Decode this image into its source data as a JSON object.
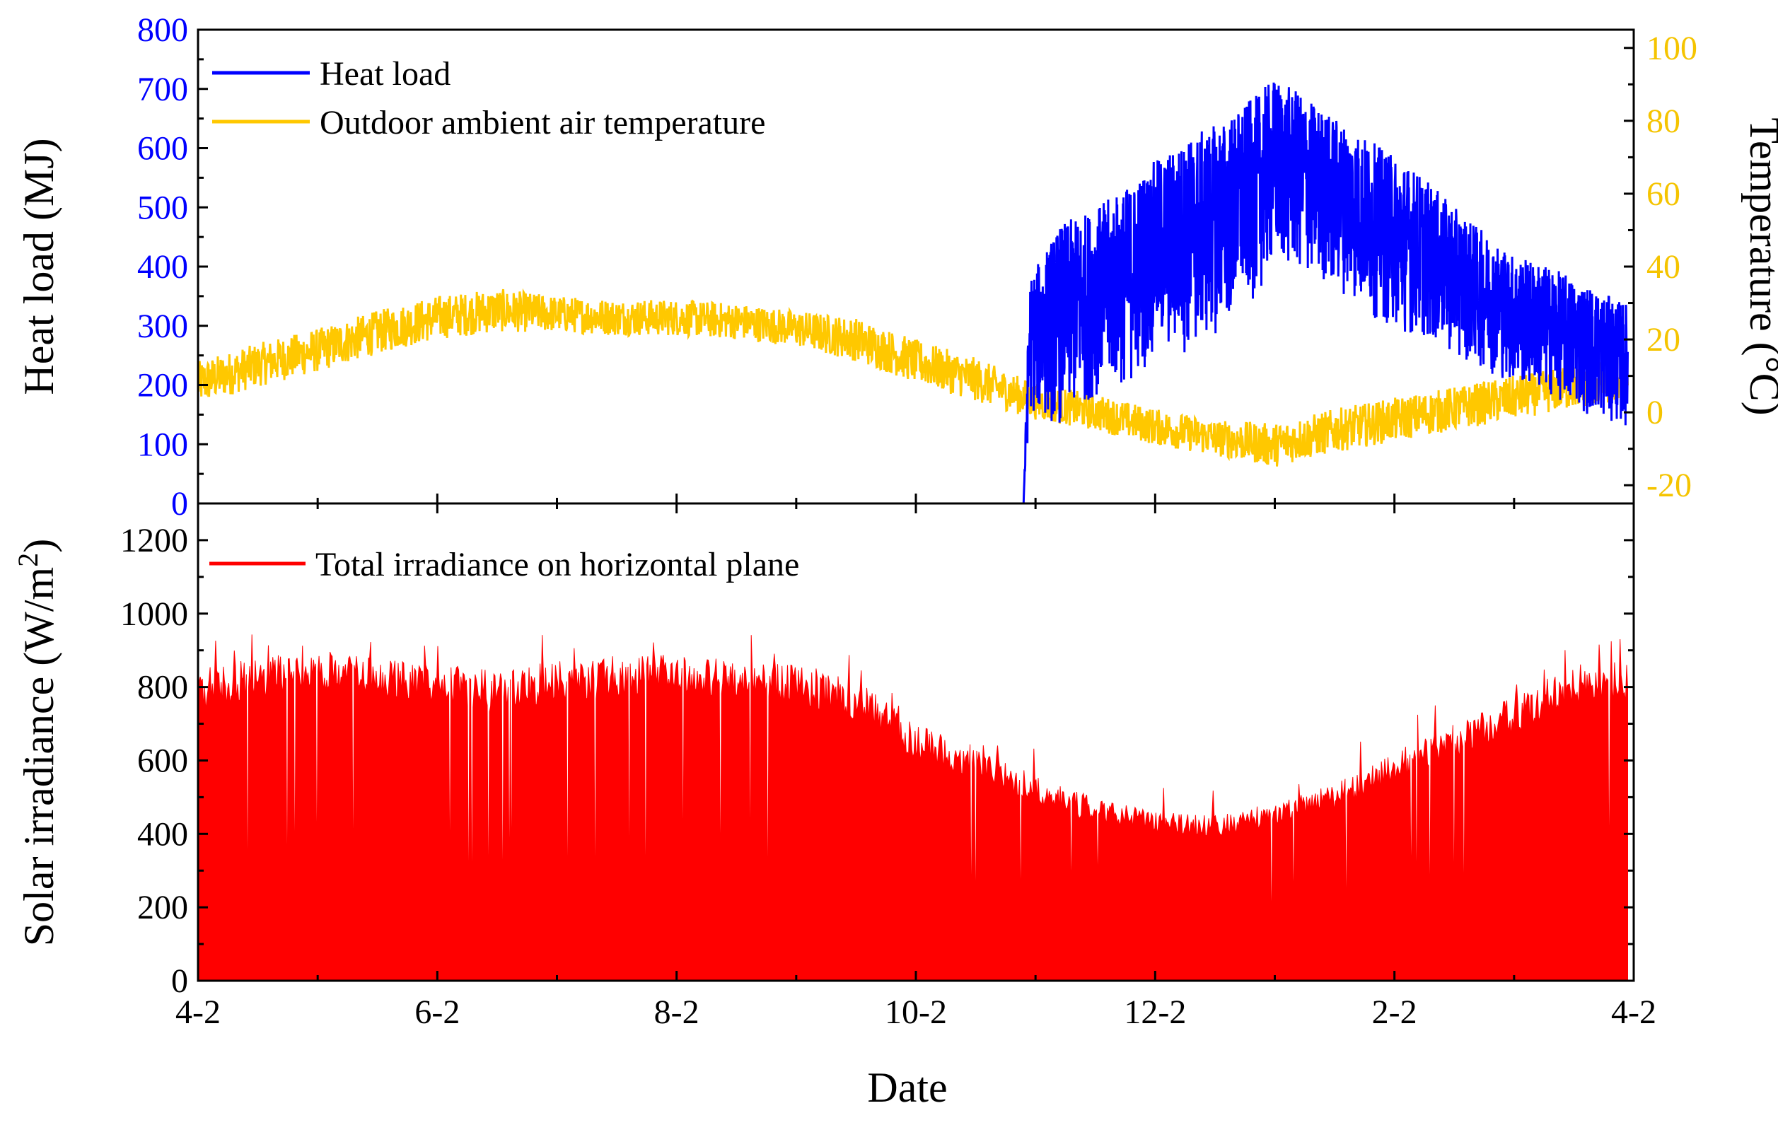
{
  "colors": {
    "heat_load": "#0000ff",
    "temperature": "#ffc800",
    "temperature_ticks": "#f5c400",
    "irradiance": "#ff0000",
    "frame": "#000000"
  },
  "chart_data": [
    {
      "type": "line",
      "panel": "top",
      "title": "",
      "xlabel": "",
      "ylabel_left": "Heat load (MJ)",
      "ylabel_right": "Temperature (°C)",
      "y_left_range": [
        0,
        800
      ],
      "y_left_ticks": [
        "0",
        "100",
        "200",
        "300",
        "400",
        "500",
        "600",
        "700",
        "800"
      ],
      "y_right_range": [
        -25,
        105
      ],
      "y_right_ticks": [
        "-20",
        "0",
        "20",
        "40",
        "60",
        "80",
        "100"
      ],
      "legend": [
        "Heat load",
        "Outdoor ambient air temperature"
      ],
      "legend_position": "top-left",
      "series": [
        {
          "name": "Heat load",
          "axis": "left",
          "note": "daily envelope: zero until about Nov 1, then fluctuating (approximate)",
          "x_month_index": [
            0,
            6.9,
            6.95,
            7.2,
            7.5,
            7.8,
            8.0,
            8.3,
            8.6,
            8.85,
            9.0,
            9.3,
            9.6,
            9.9,
            10.2,
            10.5,
            10.8,
            11.0,
            11.3,
            11.6,
            11.9
          ],
          "low": [
            0,
            0,
            150,
            130,
            180,
            200,
            250,
            250,
            300,
            350,
            400,
            380,
            350,
            300,
            280,
            250,
            220,
            200,
            180,
            150,
            130
          ],
          "high": [
            0,
            0,
            380,
            470,
            500,
            540,
            580,
            620,
            650,
            690,
            720,
            680,
            640,
            600,
            560,
            500,
            450,
            420,
            400,
            370,
            340
          ]
        },
        {
          "name": "Outdoor ambient air temperature",
          "axis": "right",
          "note": "daily mean with fluctuation band (approximate)",
          "x_month_index": [
            0,
            0.5,
            1.0,
            1.5,
            2.0,
            2.5,
            3.0,
            3.5,
            4.0,
            4.5,
            5.0,
            5.5,
            6.0,
            6.5,
            7.0,
            7.5,
            8.0,
            8.5,
            9.0,
            9.5,
            10.0,
            10.5,
            11.0,
            11.5,
            11.95
          ],
          "mean": [
            8,
            13,
            17,
            22,
            26,
            28,
            27,
            26,
            26,
            25,
            23,
            20,
            14,
            9,
            3,
            0,
            -4,
            -7,
            -9,
            -5,
            -2,
            1,
            4,
            7,
            9
          ],
          "amplitude": [
            6,
            6,
            6,
            6,
            6,
            6,
            5,
            5,
            5,
            5,
            5,
            6,
            6,
            6,
            5,
            5,
            5,
            5,
            6,
            6,
            6,
            6,
            6,
            6,
            6
          ]
        }
      ]
    },
    {
      "type": "area",
      "panel": "bottom",
      "title": "",
      "xlabel": "Date",
      "ylabel": "Solar irradiance (W/m",
      "ylabel_sup": "2",
      "ylabel_end": ")",
      "x_ticks": [
        "4-2",
        "6-2",
        "8-2",
        "10-2",
        "12-2",
        "2-2",
        "4-2"
      ],
      "y_range": [
        0,
        1300
      ],
      "y_ticks": [
        "0",
        "200",
        "400",
        "600",
        "800",
        "1000",
        "1200"
      ],
      "legend": [
        "Total irradiance on horizontal plane"
      ],
      "legend_position": "top-left",
      "series": [
        {
          "name": "Total irradiance on horizontal plane",
          "note": "daily peak envelope (approximate)",
          "x_month_index": [
            0,
            0.5,
            1.0,
            1.5,
            2.0,
            2.5,
            3.0,
            3.5,
            4.0,
            4.5,
            5.0,
            5.5,
            6.0,
            6.5,
            7.0,
            7.5,
            8.0,
            8.5,
            9.0,
            9.5,
            10.0,
            10.5,
            11.0,
            11.5,
            11.95
          ],
          "peak": [
            850,
            880,
            900,
            880,
            860,
            850,
            870,
            880,
            890,
            880,
            860,
            820,
            700,
            640,
            560,
            500,
            460,
            450,
            480,
            540,
            620,
            700,
            780,
            860,
            880
          ],
          "spread": [
            120,
            120,
            110,
            110,
            110,
            120,
            110,
            110,
            110,
            110,
            110,
            110,
            100,
            90,
            80,
            70,
            60,
            60,
            60,
            80,
            90,
            100,
            110,
            120,
            120
          ]
        }
      ]
    }
  ]
}
